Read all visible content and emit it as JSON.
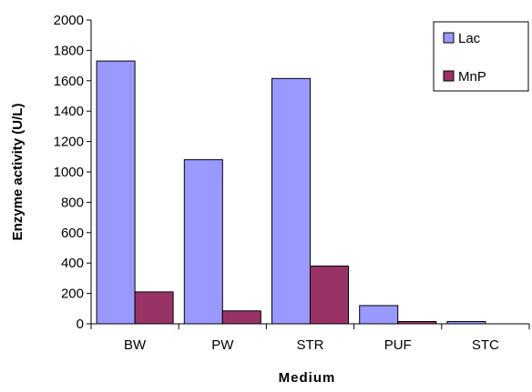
{
  "chart_data": {
    "type": "bar",
    "title": "",
    "xlabel": "Medium",
    "ylabel": "Enzyme activity (U/L)",
    "ylim": [
      0,
      2000
    ],
    "yticks": [
      0,
      200,
      400,
      600,
      800,
      1000,
      1200,
      1400,
      1600,
      1800,
      2000
    ],
    "categories": [
      "BW",
      "PW",
      "STR",
      "PUF",
      "STC"
    ],
    "series": [
      {
        "name": "Lac",
        "values": [
          1730,
          1080,
          1615,
          120,
          15
        ],
        "color": "#9999ff"
      },
      {
        "name": "MnP",
        "values": [
          210,
          85,
          380,
          15,
          0
        ],
        "color": "#993366"
      }
    ],
    "legend_position": "top-right",
    "grid": false
  }
}
